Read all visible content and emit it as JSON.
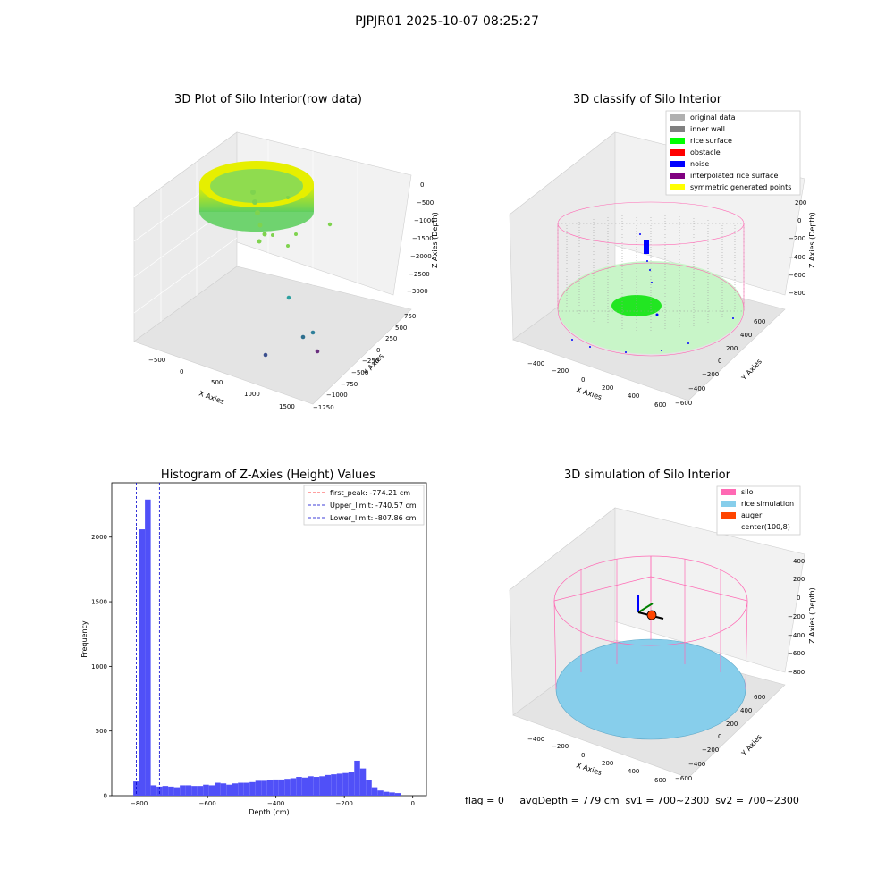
{
  "figure_title": "PJPJR01 2025-10-07 08:25:27",
  "footer_text": "flag = 0     avgDepth = 779 cm  sv1 = 700~2300  sv2 = 700~2300",
  "colors": {
    "bar": "#5050f8",
    "first_peak": "#ff0000",
    "limits": "#0000cc",
    "silo": "#ff69b4",
    "rice": "#87ceeb",
    "auger": "#ff4500"
  },
  "chart_data": [
    {
      "type": "scatter",
      "title": "3D Plot of Silo Interior(row data)",
      "xlabel": "X Axies",
      "ylabel": "Y Axies",
      "zlabel": "Z Axies (Depth)",
      "xticks": [
        "−500",
        "0",
        "500",
        "1000",
        "1500"
      ],
      "yticks": [
        "750",
        "500",
        "250",
        "0",
        "−250",
        "−500",
        "−750",
        "−1000",
        "−1250"
      ],
      "zticks": [
        "0",
        "−500",
        "−1000",
        "−1500",
        "−2000",
        "−2500",
        "−3000"
      ]
    },
    {
      "type": "scatter",
      "title": "3D classify of Silo Interior",
      "xlabel": "X Axies",
      "ylabel": "Y Axies",
      "zlabel": "Z Axies (Depth)",
      "xticks": [
        "−400",
        "−200",
        "0",
        "200",
        "400",
        "600"
      ],
      "yticks": [
        "600",
        "400",
        "200",
        "0",
        "−200",
        "−400",
        "−600"
      ],
      "zticks": [
        "200",
        "0",
        "−200",
        "−400",
        "−600",
        "−800"
      ],
      "legend": [
        {
          "label": "original data",
          "color": "#b0b0b0"
        },
        {
          "label": "inner wall",
          "color": "#808080"
        },
        {
          "label": "rice surface",
          "color": "#00ff00"
        },
        {
          "label": "obstacle",
          "color": "#ff0000"
        },
        {
          "label": "noise",
          "color": "#0000ff"
        },
        {
          "label": "interpolated rice surface",
          "color": "#800080"
        },
        {
          "label": "symmetric generated points",
          "color": "#ffff00"
        }
      ]
    },
    {
      "type": "bar",
      "title": "Histogram of Z-Axies (Height) Values",
      "xlabel": "Depth (cm)",
      "ylabel": "Frequency",
      "xlim": [
        -880,
        40
      ],
      "ylim": [
        0,
        2420
      ],
      "xticks": [
        -800,
        -600,
        -400,
        -200,
        0
      ],
      "xtick_labels": [
        "−800",
        "−600",
        "−400",
        "−200",
        "0"
      ],
      "yticks": [
        0,
        500,
        1000,
        1500,
        2000
      ],
      "bin_start": -817,
      "bin_width": 17,
      "values": [
        110,
        2060,
        2290,
        80,
        70,
        75,
        70,
        65,
        80,
        80,
        75,
        75,
        85,
        80,
        100,
        95,
        85,
        95,
        100,
        100,
        105,
        115,
        115,
        120,
        125,
        125,
        130,
        135,
        145,
        140,
        150,
        145,
        150,
        160,
        165,
        170,
        175,
        180,
        270,
        210,
        120,
        65,
        40,
        30,
        25,
        20
      ],
      "vlines": [
        {
          "x": -774.21,
          "label": "first_peak: -774.21 cm",
          "color": "#ff0000"
        },
        {
          "x": -740.57,
          "label": "Upper_limit: -740.57 cm",
          "color": "#0000cc"
        },
        {
          "x": -807.86,
          "label": "Lower_limit: -807.86 cm",
          "color": "#0000cc"
        }
      ]
    },
    {
      "type": "scatter",
      "title": "3D simulation of Silo Interior",
      "xlabel": "X Axies",
      "ylabel": "Y Axies",
      "zlabel": "Z Axies (Depth)",
      "xticks": [
        "−400",
        "−200",
        "0",
        "200",
        "400",
        "600"
      ],
      "yticks": [
        "600",
        "400",
        "200",
        "0",
        "−200",
        "−400",
        "−600"
      ],
      "zticks": [
        "400",
        "200",
        "0",
        "−200",
        "−400",
        "−600",
        "−800"
      ],
      "legend": [
        {
          "label": "silo",
          "color": "#ff69b4"
        },
        {
          "label": "rice simulation",
          "color": "#87ceeb"
        },
        {
          "label": "auger",
          "color": "#ff4500"
        },
        {
          "label": "center(100,8)",
          "color": ""
        }
      ]
    }
  ]
}
